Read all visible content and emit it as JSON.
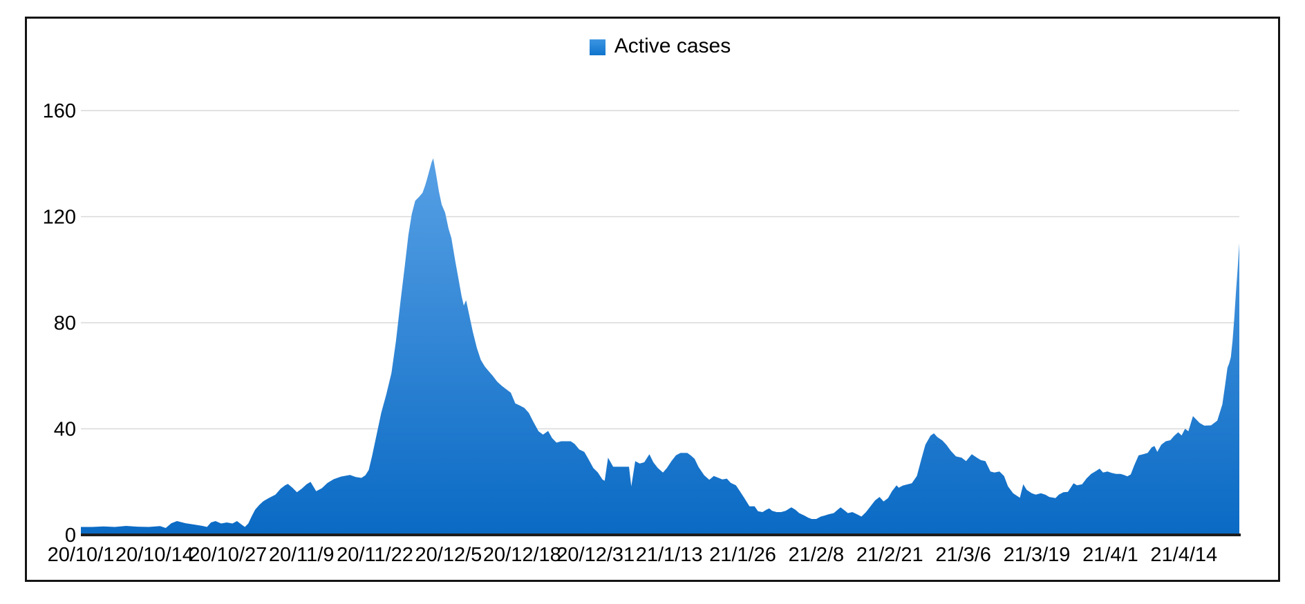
{
  "chart_data": {
    "type": "area",
    "title": "",
    "legend": "Active cases",
    "legend_position": "top-center",
    "grid": true,
    "y_axis": {
      "label": "",
      "min": 0,
      "max": 160,
      "ticks": [
        0,
        40,
        80,
        120,
        160
      ]
    },
    "x_axis": {
      "label": "",
      "tick_labels": [
        "20/10/1",
        "20/10/14",
        "20/10/27",
        "20/11/9",
        "20/11/22",
        "20/12/5",
        "20/12/18",
        "20/12/31",
        "21/1/13",
        "21/1/26",
        "21/2/8",
        "21/2/21",
        "21/3/6",
        "21/3/19",
        "21/4/1",
        "21/4/14"
      ],
      "tick_interval_days": 13,
      "total_days": 204.8
    },
    "series": [
      {
        "name": "Active cases",
        "points_format": "[day_offset_from_20/10/1, active_cases]",
        "points": [
          [
            0,
            3
          ],
          [
            2,
            3
          ],
          [
            4,
            3.2
          ],
          [
            6,
            3
          ],
          [
            8,
            3.4
          ],
          [
            10,
            3.1
          ],
          [
            12,
            3
          ],
          [
            14,
            3.3
          ],
          [
            15,
            2.6
          ],
          [
            16,
            4.4
          ],
          [
            17,
            5.2
          ],
          [
            18.5,
            4.4
          ],
          [
            20,
            3.9
          ],
          [
            21.5,
            3.4
          ],
          [
            22.3,
            3
          ],
          [
            23,
            4.7
          ],
          [
            23.8,
            5.2
          ],
          [
            24.8,
            4.3
          ],
          [
            25.8,
            4.7
          ],
          [
            26.8,
            4.3
          ],
          [
            27.6,
            5.2
          ],
          [
            28.4,
            3.9
          ],
          [
            29,
            3
          ],
          [
            29.6,
            4.3
          ],
          [
            30.2,
            7
          ],
          [
            30.8,
            9.5
          ],
          [
            31.5,
            11.2
          ],
          [
            32.2,
            12.6
          ],
          [
            33.2,
            13.9
          ],
          [
            34.4,
            15.2
          ],
          [
            35.3,
            17.4
          ],
          [
            36.1,
            18.7
          ],
          [
            36.6,
            19.2
          ],
          [
            37.4,
            17.8
          ],
          [
            38.2,
            16.1
          ],
          [
            39.1,
            17.5
          ],
          [
            39.9,
            19.1
          ],
          [
            40.6,
            20
          ],
          [
            41.6,
            16.5
          ],
          [
            42.6,
            17.6
          ],
          [
            43.6,
            19.6
          ],
          [
            44.7,
            21
          ],
          [
            46,
            22
          ],
          [
            47.6,
            22.6
          ],
          [
            48.6,
            21.8
          ],
          [
            49.6,
            21.5
          ],
          [
            50.3,
            22.5
          ],
          [
            50.9,
            24.5
          ],
          [
            51.5,
            30
          ],
          [
            52.3,
            38
          ],
          [
            53.1,
            46
          ],
          [
            54,
            53
          ],
          [
            54.9,
            61
          ],
          [
            55.7,
            73
          ],
          [
            56.5,
            88
          ],
          [
            57.3,
            102
          ],
          [
            57.9,
            113
          ],
          [
            58.5,
            121
          ],
          [
            59.1,
            126
          ],
          [
            59.8,
            127.5
          ],
          [
            60.4,
            129
          ],
          [
            60.9,
            132
          ],
          [
            61.3,
            135
          ],
          [
            62,
            140.5
          ],
          [
            62.3,
            142
          ],
          [
            62.8,
            136
          ],
          [
            63.3,
            129.5
          ],
          [
            63.8,
            124.5
          ],
          [
            64.4,
            121.5
          ],
          [
            65,
            115.5
          ],
          [
            65.5,
            112
          ],
          [
            66.2,
            103
          ],
          [
            66.8,
            96
          ],
          [
            67.3,
            90
          ],
          [
            67.7,
            86.5
          ],
          [
            68.1,
            88.5
          ],
          [
            68.6,
            83.5
          ],
          [
            69.3,
            76.5
          ],
          [
            70,
            70.5
          ],
          [
            70.7,
            66
          ],
          [
            71.4,
            63.5
          ],
          [
            72,
            62
          ],
          [
            72.8,
            60
          ],
          [
            73.6,
            57.8
          ],
          [
            74.4,
            56.2
          ],
          [
            75.2,
            54.9
          ],
          [
            76,
            53.6
          ],
          [
            76.8,
            49.6
          ],
          [
            77.6,
            48.8
          ],
          [
            78.4,
            47.9
          ],
          [
            79.2,
            46
          ],
          [
            80,
            42.6
          ],
          [
            80.9,
            39.1
          ],
          [
            81.7,
            37.8
          ],
          [
            82.6,
            39.2
          ],
          [
            83.3,
            36.5
          ],
          [
            84.1,
            34.8
          ],
          [
            84.9,
            35.3
          ],
          [
            86.6,
            35.3
          ],
          [
            87.3,
            34.3
          ],
          [
            88.1,
            32.2
          ],
          [
            89,
            31.3
          ],
          [
            89.7,
            28.7
          ],
          [
            90.6,
            25.2
          ],
          [
            91.4,
            23.5
          ],
          [
            92.2,
            20.9
          ],
          [
            92.6,
            20.4
          ],
          [
            93.2,
            29.1
          ],
          [
            94.1,
            25.7
          ],
          [
            96.9,
            25.7
          ],
          [
            97.3,
            18.3
          ],
          [
            98,
            27.8
          ],
          [
            98.8,
            26.9
          ],
          [
            99.6,
            27.4
          ],
          [
            100.5,
            30.4
          ],
          [
            101.2,
            27.4
          ],
          [
            102,
            25.2
          ],
          [
            102.9,
            23.5
          ],
          [
            103.6,
            25.2
          ],
          [
            104.4,
            27.8
          ],
          [
            105.2,
            30
          ],
          [
            106,
            30.9
          ],
          [
            107.2,
            30.9
          ],
          [
            107.8,
            30
          ],
          [
            108.5,
            28.7
          ],
          [
            109.2,
            25.6
          ],
          [
            110.2,
            22.5
          ],
          [
            111.1,
            20.8
          ],
          [
            111.9,
            22.2
          ],
          [
            112.5,
            21.7
          ],
          [
            113.4,
            20.9
          ],
          [
            114.2,
            21.2
          ],
          [
            114.9,
            19.6
          ],
          [
            115.8,
            18.7
          ],
          [
            116.5,
            16.5
          ],
          [
            117.3,
            13.9
          ],
          [
            118.2,
            10.8
          ],
          [
            119.1,
            10.8
          ],
          [
            119.7,
            8.9
          ],
          [
            120.5,
            8.6
          ],
          [
            121.2,
            9.5
          ],
          [
            121.7,
            10
          ],
          [
            122.2,
            9.1
          ],
          [
            123,
            8.6
          ],
          [
            123.8,
            8.6
          ],
          [
            124.6,
            9.1
          ],
          [
            125.6,
            10.4
          ],
          [
            126.3,
            9.5
          ],
          [
            127,
            8.2
          ],
          [
            127.9,
            7.3
          ],
          [
            128.6,
            6.5
          ],
          [
            129.2,
            6
          ],
          [
            130,
            6
          ],
          [
            130.8,
            6.9
          ],
          [
            131.5,
            7.3
          ],
          [
            132.2,
            7.8
          ],
          [
            133.1,
            8.2
          ],
          [
            133.8,
            9.5
          ],
          [
            134.3,
            10.4
          ],
          [
            135.1,
            9.1
          ],
          [
            135.6,
            8.2
          ],
          [
            136.4,
            8.6
          ],
          [
            137.2,
            7.8
          ],
          [
            138,
            6.9
          ],
          [
            138.8,
            8.6
          ],
          [
            139.6,
            10.8
          ],
          [
            140.4,
            13
          ],
          [
            141.2,
            14.3
          ],
          [
            141.9,
            12.6
          ],
          [
            142.7,
            13.9
          ],
          [
            143.4,
            16.5
          ],
          [
            144.2,
            18.7
          ],
          [
            144.6,
            17.8
          ],
          [
            145.3,
            18.6
          ],
          [
            146.2,
            19.1
          ],
          [
            146.9,
            19.5
          ],
          [
            147.8,
            22.2
          ],
          [
            148.6,
            28.7
          ],
          [
            149.3,
            34
          ],
          [
            150.2,
            37.4
          ],
          [
            150.8,
            38.3
          ],
          [
            151.4,
            36.9
          ],
          [
            152.3,
            35.6
          ],
          [
            153,
            34
          ],
          [
            153.8,
            31.7
          ],
          [
            154.7,
            29.6
          ],
          [
            155.7,
            29.1
          ],
          [
            156.5,
            27.8
          ],
          [
            157.5,
            30.4
          ],
          [
            158.4,
            29.1
          ],
          [
            159.1,
            28.2
          ],
          [
            159.9,
            27.8
          ],
          [
            160.8,
            23.9
          ],
          [
            161.5,
            23.5
          ],
          [
            162.4,
            23.9
          ],
          [
            163.2,
            22.2
          ],
          [
            163.9,
            18.3
          ],
          [
            164.8,
            15.7
          ],
          [
            166,
            14
          ],
          [
            166.6,
            19.1
          ],
          [
            167.2,
            17
          ],
          [
            168.1,
            15.7
          ],
          [
            168.8,
            15.2
          ],
          [
            169.7,
            15.7
          ],
          [
            170.5,
            15.2
          ],
          [
            171.2,
            14.3
          ],
          [
            172.3,
            13.9
          ],
          [
            172.9,
            15.2
          ],
          [
            173.7,
            16.1
          ],
          [
            174.5,
            16.2
          ],
          [
            175.5,
            19.5
          ],
          [
            176.1,
            18.7
          ],
          [
            177,
            19.1
          ],
          [
            177.8,
            21.3
          ],
          [
            178.6,
            23
          ],
          [
            179.4,
            24
          ],
          [
            180.1,
            25
          ],
          [
            180.7,
            23.5
          ],
          [
            181.5,
            23.9
          ],
          [
            182.2,
            23.4
          ],
          [
            183,
            23
          ],
          [
            183.8,
            23
          ],
          [
            184.4,
            22.6
          ],
          [
            185,
            22.1
          ],
          [
            185.6,
            22.8
          ],
          [
            186.2,
            26.1
          ],
          [
            187,
            30
          ],
          [
            187.8,
            30.4
          ],
          [
            188.6,
            30.9
          ],
          [
            189.3,
            33
          ],
          [
            189.8,
            33.5
          ],
          [
            190.3,
            31.3
          ],
          [
            191,
            34
          ],
          [
            191.8,
            35.3
          ],
          [
            192.6,
            35.7
          ],
          [
            193.3,
            37.4
          ],
          [
            194,
            38.7
          ],
          [
            194.6,
            37.5
          ],
          [
            195.2,
            40
          ],
          [
            195.8,
            39.1
          ],
          [
            196.6,
            44.8
          ],
          [
            197.8,
            42.2
          ],
          [
            198.6,
            41.2
          ],
          [
            199.8,
            41.3
          ],
          [
            200.9,
            43.1
          ],
          [
            201.8,
            49.2
          ],
          [
            202.3,
            56.6
          ],
          [
            202.7,
            63
          ],
          [
            203,
            64.7
          ],
          [
            203.3,
            67
          ],
          [
            203.6,
            73.2
          ],
          [
            203.9,
            81.4
          ],
          [
            204.2,
            91.5
          ],
          [
            204.5,
            100.2
          ],
          [
            204.8,
            110
          ]
        ]
      }
    ],
    "colors": {
      "area_top": "#57a0e5",
      "area_bottom": "#0a6ac4",
      "legend_swatch_top": "#3d95e2",
      "legend_swatch_bottom": "#0f74cd",
      "gridline": "#d9d9d9",
      "axis_line": "#1d1d1d",
      "text": "#000000",
      "frame_border": "#141414",
      "background": "#ffffff"
    }
  }
}
